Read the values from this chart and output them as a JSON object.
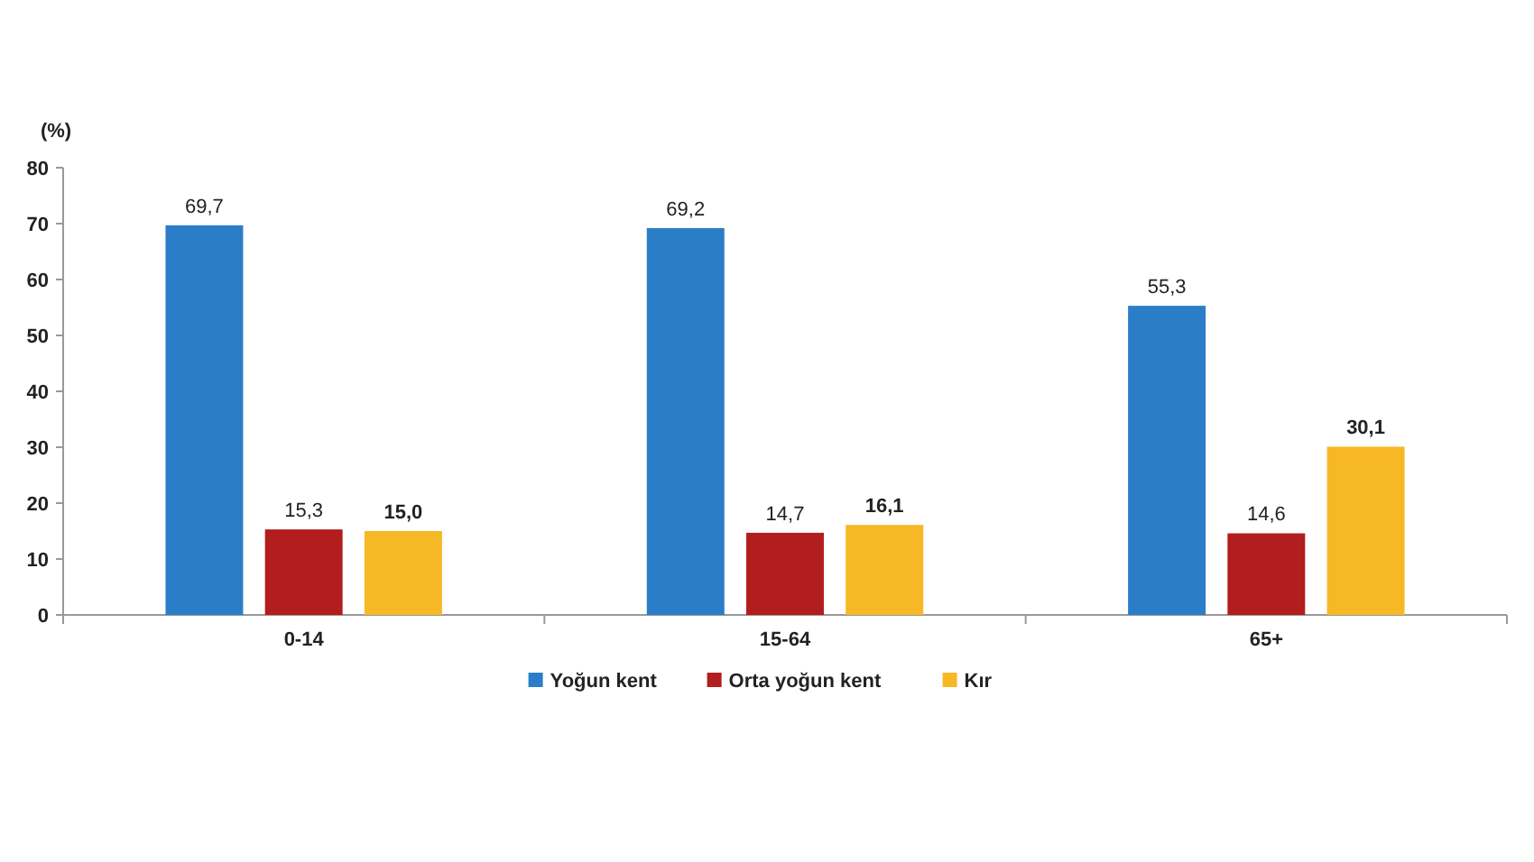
{
  "chart_data": {
    "type": "bar",
    "ylabel": "(%)",
    "categories": [
      "0-14",
      "15-64",
      "65+"
    ],
    "series": [
      {
        "name": "Yoğun kent",
        "color": "#2b7dc8",
        "values": [
          69.7,
          69.2,
          55.3
        ],
        "value_labels": [
          "69,7",
          "69,2",
          "55,3"
        ]
      },
      {
        "name": "Orta yoğun kent",
        "color": "#b21d1d",
        "values": [
          15.3,
          14.7,
          14.6
        ],
        "value_labels": [
          "15,3",
          "14,7",
          "14,6"
        ]
      },
      {
        "name": "Kır",
        "color": "#f6b824",
        "values": [
          15.0,
          16.1,
          30.1
        ],
        "value_labels": [
          "15,0",
          "16,1",
          "30,1"
        ]
      }
    ],
    "ylim": [
      0,
      80
    ],
    "yticks": [
      0,
      10,
      20,
      30,
      40,
      50,
      60,
      70,
      80
    ],
    "grid": false,
    "legend": "bottom"
  }
}
